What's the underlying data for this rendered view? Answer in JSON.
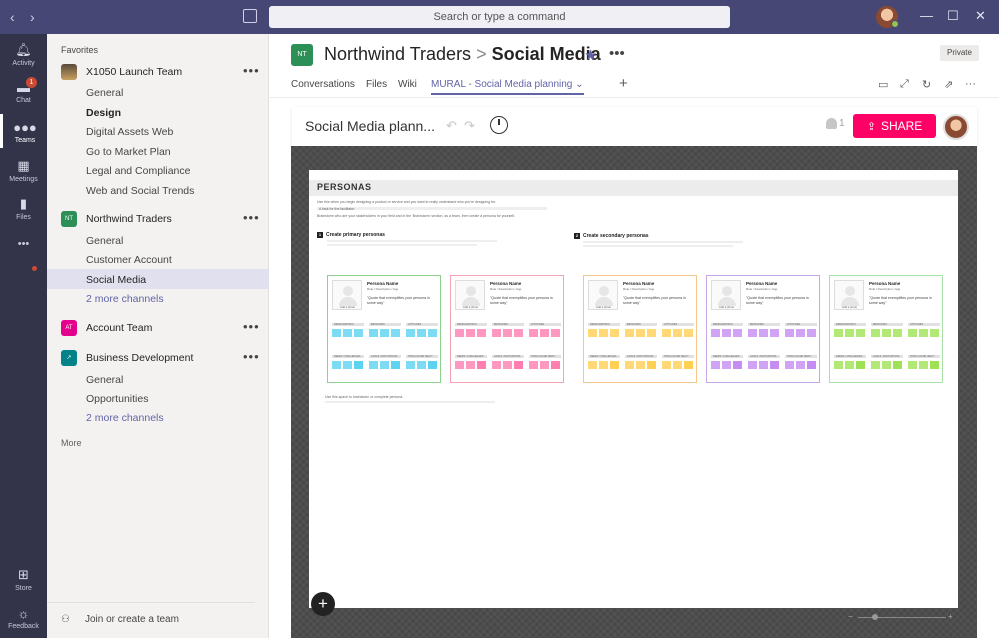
{
  "titlebar": {
    "back": "‹",
    "forward": "›",
    "search_placeholder": "Search or type a command",
    "minimize": "—",
    "maximize": "☐",
    "close": "✕"
  },
  "rail": {
    "activity": "Activity",
    "chat": "Chat",
    "chat_badge": "1",
    "teams": "Teams",
    "meetings": "Meetings",
    "files": "Files",
    "more": "•••",
    "store": "Store",
    "feedback": "Feedback"
  },
  "left_pane": {
    "favorites": "Favorites",
    "teams": [
      {
        "name": "X1050 Launch Team",
        "icon_color": "#3b3a39",
        "channels": [
          "General",
          "Design",
          "Digital Assets Web",
          "Go to Market Plan",
          "Legal and Compliance",
          "Web and Social Trends"
        ]
      },
      {
        "name": "Northwind Traders",
        "initials": "NT",
        "icon_color": "#2b8f56",
        "channels": [
          "General",
          "Customer Account",
          "Social Media",
          "2 more channels"
        ]
      },
      {
        "name": "Account Team",
        "initials": "AT",
        "icon_color": "#e3008c",
        "channels": []
      },
      {
        "name": "Business Development",
        "icon_color": "#038387",
        "channels": [
          "General",
          "Opportunities",
          "2 more channels"
        ]
      }
    ],
    "team_more": "•••",
    "more": "More",
    "join": "Join or create a team"
  },
  "main": {
    "team_initials": "NT",
    "team_name": "Northwind Traders",
    "crumb_sep": ">",
    "channel_name": "Social Media",
    "private_label": "Private",
    "more": "•••",
    "tabs": [
      "Conversations",
      "Files",
      "Wiki",
      "MURAL - Social Media planning"
    ],
    "tab_chevron": "⌄",
    "add_tab": "+"
  },
  "mural": {
    "title": "Social Media plann...",
    "user_count": "1",
    "share_label": "SHARE",
    "board": {
      "heading": "PERSONAS",
      "intro": "Use this when you begin designing a product or service and you want to really understand who you're designing for.",
      "tip_bar": "A task for the facilitator",
      "intro2": "Brainstorm who are your stakeholders in your field and in the 'Brainstorm' section, as a team, then create a persona for yourself.",
      "primary_title": "Create primary personas",
      "primary_num": "1",
      "secondary_title": "Create secondary personas",
      "secondary_num": "2",
      "footnote": "Use this space to brainstorm or complete persona.",
      "persona": {
        "name": "Persona Name",
        "role": "Role / Description / Age",
        "photo_label": "Add a photo",
        "quote": "\"Quote that exemplifies your persona in some way\"",
        "sections_top": [
          "DEMOGRAPHICS",
          "BEHAVIORS",
          "ATTITUDES"
        ],
        "sections_bottom": [
          "NEEDS / CHALLENGES",
          "GOALS / MOTIVATIONS",
          "HOW CAN WE HELP?"
        ]
      },
      "persona_colors": [
        {
          "border": "#8fd18f",
          "sticky": "#5cd3f0"
        },
        {
          "border": "#f4a3b7",
          "sticky": "#ff7eb0"
        },
        {
          "border": "#f5c78a",
          "sticky": "#ffd052"
        },
        {
          "border": "#c8a7e8",
          "sticky": "#c58cf2"
        },
        {
          "border": "#a8e0a8",
          "sticky": "#9de254"
        }
      ]
    },
    "add_button": "+",
    "zoom_minus": "−",
    "zoom_plus": "+"
  }
}
